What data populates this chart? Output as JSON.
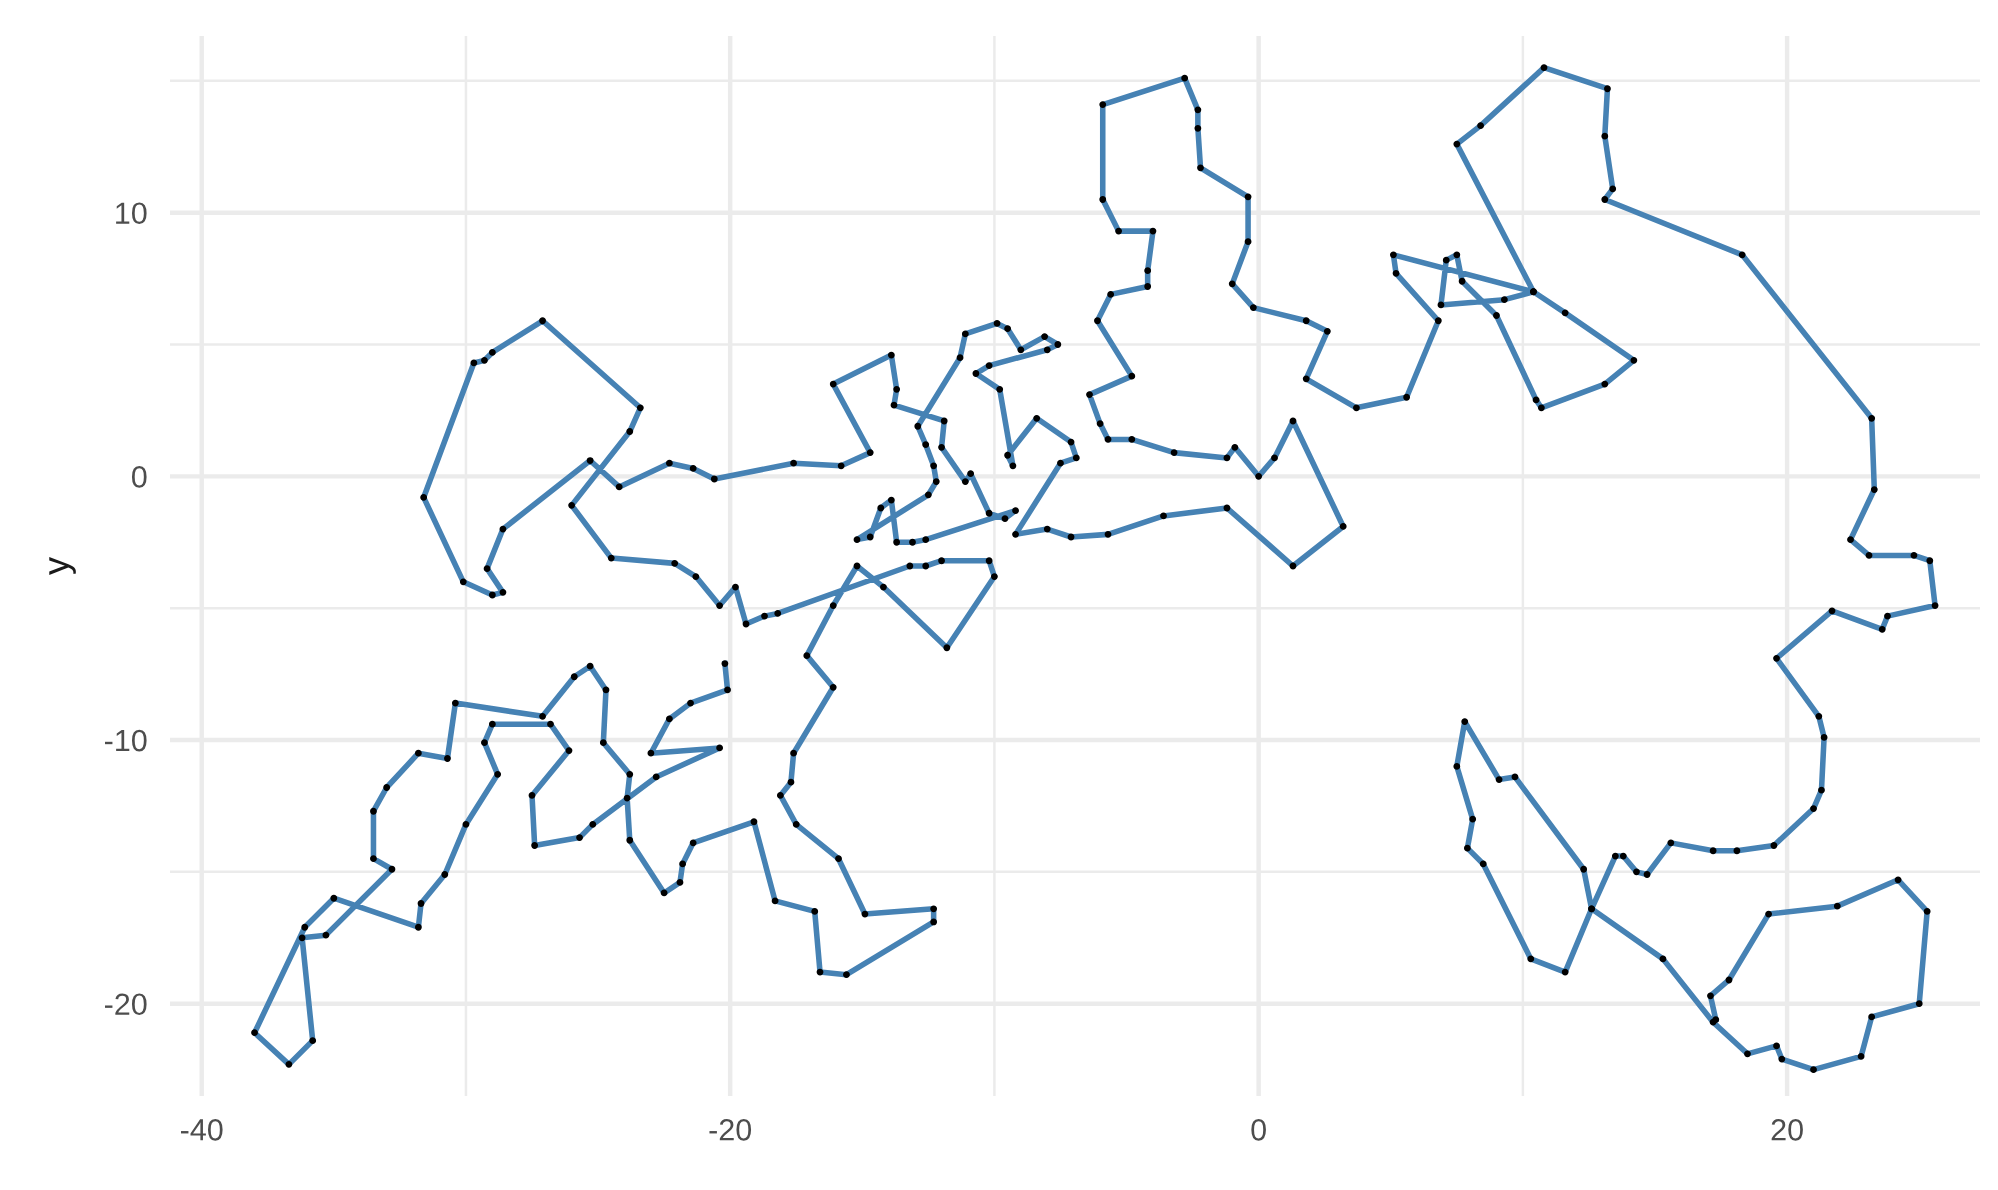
{
  "chart_data": {
    "type": "line",
    "ylabel": "y",
    "xlim": [
      -41.2,
      27.3
    ],
    "ylim": [
      -23.5,
      16.7
    ],
    "xticks": [
      -40,
      {
        "value": -30,
        "label": null
      },
      -20,
      {
        "value": -10,
        "label": null
      },
      0,
      {
        "value": 10,
        "label": null
      },
      20
    ],
    "yticks": [
      -20,
      {
        "value": -15,
        "label": null
      },
      -10,
      {
        "value": -5,
        "label": null
      },
      0,
      {
        "value": 5,
        "label": null
      },
      10,
      {
        "value": 15,
        "label": null
      }
    ],
    "grid": true,
    "series": [
      {
        "color": "#4682b4",
        "marker": "none",
        "line_style": "solid",
        "x": [
          -20.2,
          -20.1,
          -21.5,
          -22.3,
          -23.0,
          -20.4,
          -22.8,
          -25.2,
          -25.7,
          -27.4,
          -27.5,
          -26.1,
          -26.8,
          -29.0,
          -29.3,
          -28.8,
          -30.0,
          -30.8,
          -31.7,
          -31.8,
          -35.0,
          -36.1,
          -38.0,
          -36.7,
          -35.8,
          -36.2,
          -35.3,
          -32.8,
          -33.5,
          -33.5,
          -33.0,
          -31.8,
          -30.7,
          -30.4,
          -27.1,
          -25.9,
          -25.3,
          -24.7,
          -24.8,
          -23.8,
          -23.9,
          -23.8,
          -22.5,
          -21.9,
          -21.8,
          -21.4,
          -19.1,
          -18.3,
          -16.8,
          -16.6,
          -15.6,
          -12.3,
          -12.3,
          -14.9,
          -15.9,
          -17.5,
          -18.1,
          -17.7,
          -17.6,
          -16.1,
          -17.1,
          -16.1,
          -15.2,
          -14.2,
          -11.8,
          -10.0,
          -10.2,
          -12.0,
          -12.6,
          -13.2,
          -18.2,
          -18.7,
          -19.4,
          -19.8,
          -20.4,
          -21.3,
          -22.1,
          -24.5,
          -26.0,
          -23.8,
          -23.4,
          -27.1,
          -29.0,
          -29.3,
          -29.7,
          -31.6,
          -30.1,
          -29.0,
          -28.6,
          -29.2,
          -28.6,
          -25.3,
          -24.2,
          -22.3,
          -21.4,
          -20.6,
          -17.6,
          -15.8,
          -14.7,
          -16.1,
          -13.9,
          -13.7,
          -13.8,
          -11.9,
          -12.0,
          -11.1,
          -10.9,
          -10.2,
          -9.6,
          -9.2,
          -12.6,
          -13.1,
          -13.7,
          -13.9,
          -14.3,
          -14.7,
          -15.2,
          -12.5,
          -12.2,
          -12.3,
          -12.6,
          -12.9,
          -11.3,
          -11.1,
          -9.9,
          -9.5,
          -9.0,
          -8.1,
          -7.6,
          -8.0,
          -10.2,
          -10.7,
          -9.8,
          -9.3,
          -9.5,
          -8.4,
          -7.1,
          -6.9,
          -7.5,
          -9.2,
          -8.0,
          -7.1,
          -5.7,
          -3.6,
          -1.2,
          1.3,
          3.2,
          1.3,
          0.6,
          0.0,
          -0.9,
          -1.2,
          -3.2,
          -4.8,
          -5.7,
          -6.0,
          -6.4,
          -4.8,
          -6.1,
          -5.6,
          -4.2,
          -4.2,
          -4.0,
          -5.3,
          -5.9,
          -5.9,
          -2.8,
          -2.3,
          -2.3,
          -2.2,
          -0.4,
          -0.4,
          -1.0,
          -0.2,
          1.8,
          2.6,
          1.8,
          3.7,
          5.6,
          6.8,
          5.2,
          5.1,
          10.4,
          11.6,
          14.2,
          13.1,
          10.7,
          10.5,
          9.0,
          7.7,
          7.5,
          7.1,
          6.9,
          9.3,
          10.4,
          7.5,
          8.4,
          10.8,
          13.2,
          13.1,
          13.4,
          13.1,
          18.3,
          23.2,
          23.3,
          22.4,
          23.1,
          24.8,
          25.4,
          25.6,
          23.8,
          23.6,
          21.7,
          19.6,
          21.2,
          21.4,
          21.3,
          21.0,
          19.5,
          18.1,
          17.2,
          15.6,
          14.7,
          14.3,
          13.8,
          13.5,
          12.6,
          11.6,
          10.3,
          8.5,
          7.9,
          8.1,
          7.5,
          7.8,
          9.1,
          9.7,
          12.3,
          12.6,
          15.3,
          17.2,
          18.5,
          19.6,
          19.8,
          21.0,
          22.8,
          23.2,
          25.0,
          25.3,
          24.2,
          21.9,
          19.3,
          17.8,
          17.1,
          17.3
        ],
        "values": [
          -7.1,
          -8.1,
          -8.6,
          -9.2,
          -10.5,
          -10.3,
          -11.4,
          -13.2,
          -13.7,
          -14.0,
          -12.1,
          -10.4,
          -9.4,
          -9.4,
          -10.1,
          -11.3,
          -13.2,
          -15.1,
          -16.2,
          -17.1,
          -16.0,
          -17.1,
          -21.1,
          -22.3,
          -21.4,
          -17.5,
          -17.4,
          -14.9,
          -14.5,
          -12.7,
          -11.8,
          -10.5,
          -10.7,
          -8.6,
          -9.1,
          -7.6,
          -7.2,
          -8.1,
          -10.1,
          -11.3,
          -12.2,
          -13.8,
          -15.8,
          -15.4,
          -14.7,
          -13.9,
          -13.1,
          -16.1,
          -16.5,
          -18.8,
          -18.9,
          -16.9,
          -16.4,
          -16.6,
          -14.5,
          -13.2,
          -12.1,
          -11.6,
          -10.5,
          -8.0,
          -6.8,
          -4.9,
          -3.4,
          -4.2,
          -6.5,
          -3.8,
          -3.2,
          -3.2,
          -3.4,
          -3.4,
          -5.2,
          -5.3,
          -5.6,
          -4.2,
          -4.9,
          -3.8,
          -3.3,
          -3.1,
          -1.1,
          1.7,
          2.6,
          5.9,
          4.7,
          4.4,
          4.3,
          -0.8,
          -4.0,
          -4.5,
          -4.4,
          -3.5,
          -2.0,
          0.6,
          -0.4,
          0.5,
          0.3,
          -0.1,
          0.5,
          0.4,
          0.9,
          3.5,
          4.6,
          3.3,
          2.7,
          2.1,
          1.1,
          -0.2,
          0.1,
          -1.4,
          -1.6,
          -1.3,
          -2.4,
          -2.5,
          -2.5,
          -0.9,
          -1.2,
          -2.3,
          -2.4,
          -0.7,
          -0.2,
          0.4,
          1.2,
          1.9,
          4.5,
          5.4,
          5.8,
          5.6,
          4.8,
          5.3,
          5.0,
          4.8,
          4.2,
          3.9,
          3.3,
          0.4,
          0.8,
          2.2,
          1.3,
          0.7,
          0.5,
          -2.2,
          -2.0,
          -2.3,
          -2.2,
          -1.5,
          -1.2,
          -3.4,
          -1.9,
          2.1,
          0.7,
          0.0,
          1.1,
          0.7,
          0.9,
          1.4,
          1.4,
          2.0,
          3.1,
          3.8,
          5.9,
          6.9,
          7.2,
          7.8,
          9.3,
          9.3,
          10.5,
          14.1,
          15.1,
          13.9,
          13.2,
          11.7,
          10.6,
          8.9,
          7.3,
          6.4,
          5.9,
          5.5,
          3.7,
          2.6,
          3.0,
          5.9,
          7.7,
          8.4,
          7.0,
          6.2,
          4.4,
          3.5,
          2.6,
          2.9,
          6.1,
          7.4,
          8.4,
          8.2,
          6.5,
          6.7,
          7.0,
          12.6,
          13.3,
          15.5,
          14.7,
          12.9,
          10.9,
          10.5,
          8.4,
          2.2,
          -0.5,
          -2.4,
          -3.0,
          -3.0,
          -3.2,
          -4.9,
          -5.3,
          -5.8,
          -5.1,
          -6.9,
          -9.1,
          -9.9,
          -11.9,
          -12.6,
          -14.0,
          -14.2,
          -14.2,
          -13.9,
          -15.1,
          -15.0,
          -14.4,
          -14.4,
          -16.4,
          -18.8,
          -18.3,
          -14.7,
          -14.1,
          -13.0,
          -11.0,
          -9.3,
          -11.5,
          -11.4,
          -14.9,
          -16.4,
          -18.3,
          -20.7,
          -21.9,
          -21.6,
          -22.1,
          -22.5,
          -22.0,
          -20.5,
          -20.0,
          -16.5,
          -15.3,
          -16.3,
          -16.6,
          -19.1,
          -19.7,
          -20.6
        ]
      },
      {
        "type": "scatter",
        "color": "#000000",
        "marker": "circle",
        "x": [
          -20.2,
          -20.1,
          -21.5,
          -22.3,
          -23.0,
          -20.4,
          -22.8,
          -25.2,
          -25.7,
          -27.4,
          -27.5,
          -26.1,
          -26.8,
          -29.0,
          -29.3,
          -28.8,
          -30.0,
          -30.8,
          -31.7,
          -31.8,
          -35.0,
          -36.1,
          -38.0,
          -36.7,
          -35.8,
          -36.2,
          -35.3,
          -32.8,
          -33.5,
          -33.5,
          -33.0,
          -31.8,
          -30.7,
          -30.4,
          -27.1,
          -25.9,
          -25.3,
          -24.7,
          -24.8,
          -23.8,
          -23.9,
          -23.8,
          -22.5,
          -21.9,
          -21.8,
          -21.4,
          -19.1,
          -18.3,
          -16.8,
          -16.6,
          -15.6,
          -12.3,
          -12.3,
          -14.9,
          -15.9,
          -17.5,
          -18.1,
          -17.7,
          -17.6,
          -16.1,
          -17.1,
          -16.1,
          -15.2,
          -14.2,
          -11.8,
          -10.0,
          -10.2,
          -12.0,
          -12.6,
          -13.2,
          -18.2,
          -18.7,
          -19.4,
          -19.8,
          -20.4,
          -21.3,
          -22.1,
          -24.5,
          -26.0,
          -23.8,
          -23.4,
          -27.1,
          -29.0,
          -29.3,
          -29.7,
          -31.6,
          -30.1,
          -29.0,
          -28.6,
          -29.2,
          -28.6,
          -25.3,
          -24.2,
          -22.3,
          -21.4,
          -20.6,
          -17.6,
          -15.8,
          -14.7,
          -16.1,
          -13.9,
          -13.7,
          -13.8,
          -11.9,
          -12.0,
          -11.1,
          -10.9,
          -10.2,
          -9.6,
          -9.2,
          -12.6,
          -13.1,
          -13.7,
          -13.9,
          -14.3,
          -14.7,
          -15.2,
          -12.5,
          -12.2,
          -12.3,
          -12.6,
          -12.9,
          -11.3,
          -11.1,
          -9.9,
          -9.5,
          -9.0,
          -8.1,
          -7.6,
          -8.0,
          -10.2,
          -10.7,
          -9.8,
          -9.3,
          -9.5,
          -8.4,
          -7.1,
          -6.9,
          -7.5,
          -9.2,
          -8.0,
          -7.1,
          -5.7,
          -3.6,
          -1.2,
          1.3,
          3.2,
          1.3,
          0.6,
          0.0,
          -0.9,
          -1.2,
          -3.2,
          -4.8,
          -5.7,
          -6.0,
          -6.4,
          -4.8,
          -6.1,
          -5.6,
          -4.2,
          -4.2,
          -4.0,
          -5.3,
          -5.9,
          -5.9,
          -2.8,
          -2.3,
          -2.3,
          -2.2,
          -0.4,
          -0.4,
          -1.0,
          -0.2,
          1.8,
          2.6,
          1.8,
          3.7,
          5.6,
          6.8,
          5.2,
          5.1,
          10.4,
          11.6,
          14.2,
          13.1,
          10.7,
          10.5,
          9.0,
          7.7,
          7.5,
          7.1,
          6.9,
          9.3,
          10.4,
          7.5,
          8.4,
          10.8,
          13.2,
          13.1,
          13.4,
          13.1,
          18.3,
          23.2,
          23.3,
          22.4,
          23.1,
          24.8,
          25.4,
          25.6,
          23.8,
          23.6,
          21.7,
          19.6,
          21.2,
          21.4,
          21.3,
          21.0,
          19.5,
          18.1,
          17.2,
          15.6,
          14.7,
          14.3,
          13.8,
          13.5,
          12.6,
          11.6,
          10.3,
          8.5,
          7.9,
          8.1,
          7.5,
          7.8,
          9.1,
          9.7,
          12.3,
          12.6,
          15.3,
          17.2,
          18.5,
          19.6,
          19.8,
          21.0,
          22.8,
          23.2,
          25.0,
          25.3,
          24.2,
          21.9,
          19.3,
          17.8,
          17.1,
          17.3
        ],
        "values": [
          -7.1,
          -8.1,
          -8.6,
          -9.2,
          -10.5,
          -10.3,
          -11.4,
          -13.2,
          -13.7,
          -14.0,
          -12.1,
          -10.4,
          -9.4,
          -9.4,
          -10.1,
          -11.3,
          -13.2,
          -15.1,
          -16.2,
          -17.1,
          -16.0,
          -17.1,
          -21.1,
          -22.3,
          -21.4,
          -17.5,
          -17.4,
          -14.9,
          -14.5,
          -12.7,
          -11.8,
          -10.5,
          -10.7,
          -8.6,
          -9.1,
          -7.6,
          -7.2,
          -8.1,
          -10.1,
          -11.3,
          -12.2,
          -13.8,
          -15.8,
          -15.4,
          -14.7,
          -13.9,
          -13.1,
          -16.1,
          -16.5,
          -18.8,
          -18.9,
          -16.9,
          -16.4,
          -16.6,
          -14.5,
          -13.2,
          -12.1,
          -11.6,
          -10.5,
          -8.0,
          -6.8,
          -4.9,
          -3.4,
          -4.2,
          -6.5,
          -3.8,
          -3.2,
          -3.2,
          -3.4,
          -3.4,
          -5.2,
          -5.3,
          -5.6,
          -4.2,
          -4.9,
          -3.8,
          -3.3,
          -3.1,
          -1.1,
          1.7,
          2.6,
          5.9,
          4.7,
          4.4,
          4.3,
          -0.8,
          -4.0,
          -4.5,
          -4.4,
          -3.5,
          -2.0,
          0.6,
          -0.4,
          0.5,
          0.3,
          -0.1,
          0.5,
          0.4,
          0.9,
          3.5,
          4.6,
          3.3,
          2.7,
          2.1,
          1.1,
          -0.2,
          0.1,
          -1.4,
          -1.6,
          -1.3,
          -2.4,
          -2.5,
          -2.5,
          -0.9,
          -1.2,
          -2.3,
          -2.4,
          -0.7,
          -0.2,
          0.4,
          1.2,
          1.9,
          4.5,
          5.4,
          5.8,
          5.6,
          4.8,
          5.3,
          5.0,
          4.8,
          4.2,
          3.9,
          3.3,
          0.4,
          0.8,
          2.2,
          1.3,
          0.7,
          0.5,
          -2.2,
          -2.0,
          -2.3,
          -2.2,
          -1.5,
          -1.2,
          -3.4,
          -1.9,
          2.1,
          0.7,
          0.0,
          1.1,
          0.7,
          0.9,
          1.4,
          1.4,
          2.0,
          3.1,
          3.8,
          5.9,
          6.9,
          7.2,
          7.8,
          9.3,
          9.3,
          10.5,
          14.1,
          15.1,
          13.9,
          13.2,
          11.7,
          10.6,
          8.9,
          7.3,
          6.4,
          5.9,
          5.5,
          3.7,
          2.6,
          3.0,
          5.9,
          7.7,
          8.4,
          7.0,
          6.2,
          4.4,
          3.5,
          2.6,
          2.9,
          6.1,
          7.4,
          8.4,
          8.2,
          6.5,
          6.7,
          7.0,
          12.6,
          13.3,
          15.5,
          14.7,
          12.9,
          10.9,
          10.5,
          8.4,
          2.2,
          -0.5,
          -2.4,
          -3.0,
          -3.0,
          -3.2,
          -4.9,
          -5.3,
          -5.8,
          -5.1,
          -6.9,
          -9.1,
          -9.9,
          -11.9,
          -12.6,
          -14.0,
          -14.2,
          -14.2,
          -13.9,
          -15.1,
          -15.0,
          -14.4,
          -14.4,
          -16.4,
          -18.8,
          -18.3,
          -14.7,
          -14.1,
          -13.0,
          -11.0,
          -9.3,
          -11.5,
          -11.4,
          -14.9,
          -16.4,
          -18.3,
          -20.7,
          -21.9,
          -21.6,
          -22.1,
          -22.5,
          -22.0,
          -20.5,
          -20.0,
          -16.5,
          -15.3,
          -16.3,
          -16.6,
          -19.1,
          -19.7,
          -20.6
        ]
      }
    ]
  }
}
